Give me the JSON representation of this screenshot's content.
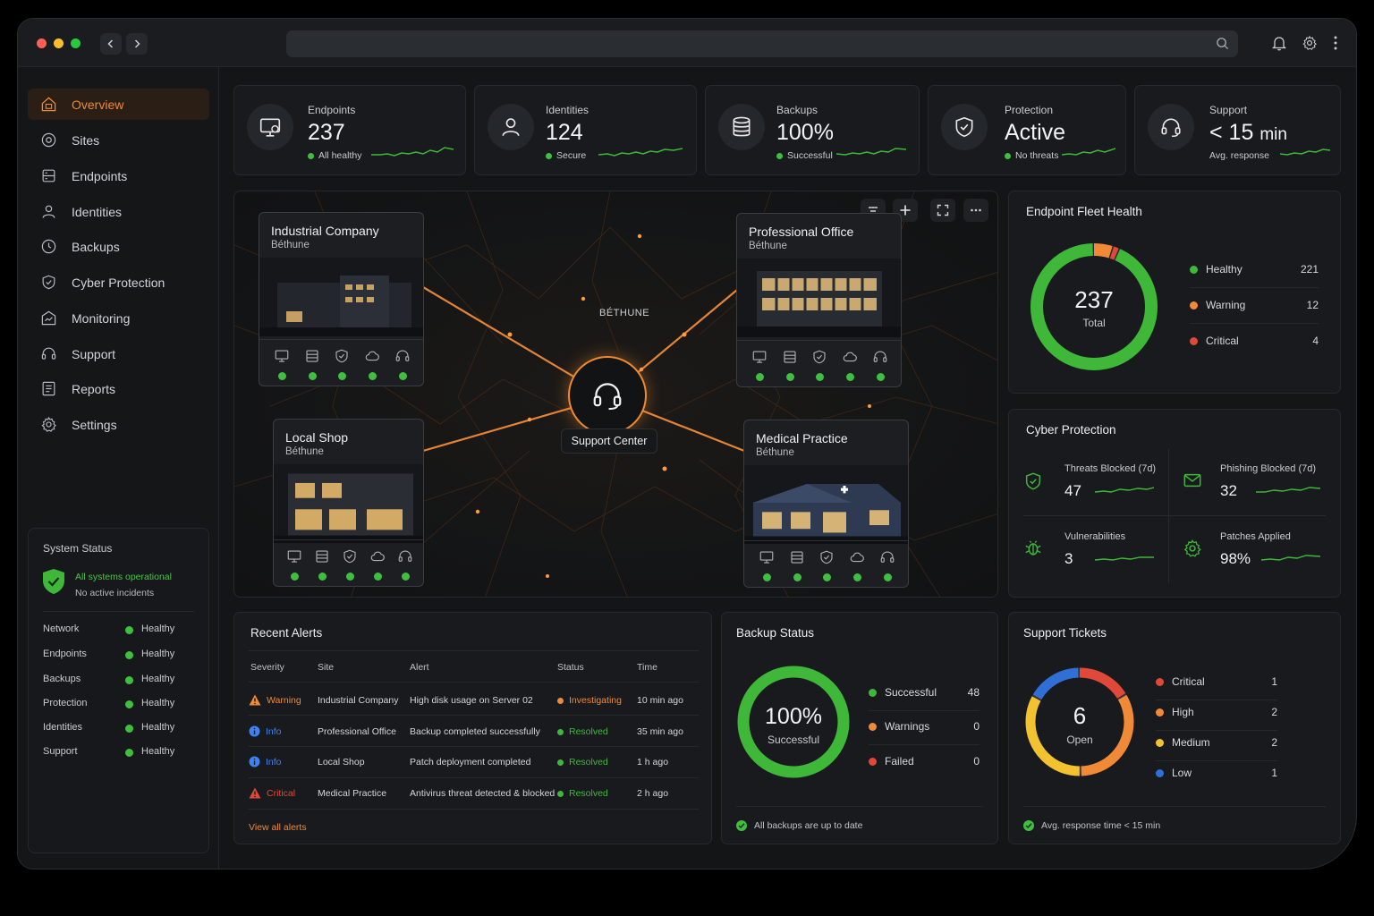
{
  "sidebar": {
    "items": [
      {
        "label": "Overview",
        "icon": "home-icon"
      },
      {
        "label": "Sites",
        "icon": "location-icon"
      },
      {
        "label": "Endpoints",
        "icon": "server-icon"
      },
      {
        "label": "Identities",
        "icon": "user-icon"
      },
      {
        "label": "Backups",
        "icon": "backup-icon"
      },
      {
        "label": "Cyber Protection",
        "icon": "shield-icon"
      },
      {
        "label": "Monitoring",
        "icon": "monitoring-icon"
      },
      {
        "label": "Support",
        "icon": "headset-icon"
      },
      {
        "label": "Reports",
        "icon": "report-icon"
      },
      {
        "label": "Settings",
        "icon": "gear-icon"
      }
    ],
    "system_status": {
      "title": "System Status",
      "headline": "All systems operational",
      "subline": "No active incidents",
      "rows": [
        {
          "name": "Network",
          "status": "Healthy"
        },
        {
          "name": "Endpoints",
          "status": "Healthy"
        },
        {
          "name": "Backups",
          "status": "Healthy"
        },
        {
          "name": "Protection",
          "status": "Healthy"
        },
        {
          "name": "Identities",
          "status": "Healthy"
        },
        {
          "name": "Support",
          "status": "Healthy"
        }
      ]
    }
  },
  "kpis": [
    {
      "label": "Endpoints",
      "value": "237",
      "sub": "All healthy",
      "icon": "monitor-icon"
    },
    {
      "label": "Identities",
      "value": "124",
      "sub": "Secure",
      "icon": "user-icon"
    },
    {
      "label": "Backups",
      "value": "100%",
      "sub": "Successful",
      "icon": "database-icon"
    },
    {
      "label": "Protection",
      "value": "Active",
      "sub": "No threats",
      "icon": "shield-check-icon"
    },
    {
      "label": "Support",
      "value_prefix": "< 15",
      "value_unit": "min",
      "sub": "Avg. response",
      "icon": "headset-icon"
    }
  ],
  "map": {
    "city": "BÉTHUNE",
    "hub_label": "Support Center",
    "sites": [
      {
        "name": "Industrial Company",
        "location": "Béthune"
      },
      {
        "name": "Professional Office",
        "location": "Béthune"
      },
      {
        "name": "Local Shop",
        "location": "Béthune"
      },
      {
        "name": "Medical Practice",
        "location": "Béthune"
      }
    ]
  },
  "fleet": {
    "title": "Endpoint Fleet Health",
    "total": "237",
    "total_label": "Total",
    "legend": [
      {
        "label": "Healthy",
        "value": 221,
        "color": "#3fb83a"
      },
      {
        "label": "Warning",
        "value": 12,
        "color": "#f08a36"
      },
      {
        "label": "Critical",
        "value": 4,
        "color": "#e0483a"
      }
    ]
  },
  "cyber": {
    "title": "Cyber Protection",
    "cells": [
      {
        "label": "Threats Blocked (7d)",
        "value": "47",
        "icon": "shield-check-icon"
      },
      {
        "label": "Phishing Blocked (7d)",
        "value": "32",
        "icon": "mail-icon"
      },
      {
        "label": "Vulnerabilities",
        "value": "3",
        "icon": "bug-icon"
      },
      {
        "label": "Patches Applied",
        "value": "98%",
        "icon": "gear-icon"
      }
    ]
  },
  "alerts": {
    "title": "Recent Alerts",
    "headers": [
      "Severity",
      "Site",
      "Alert",
      "Status",
      "Time"
    ],
    "rows": [
      {
        "severity": "Warning",
        "site": "Industrial Company",
        "alert": "High disk usage on Server 02",
        "status": "Investigating",
        "time": "10 min ago"
      },
      {
        "severity": "Info",
        "site": "Professional Office",
        "alert": "Backup completed successfully",
        "status": "Resolved",
        "time": "35 min ago"
      },
      {
        "severity": "Info",
        "site": "Local Shop",
        "alert": "Patch deployment completed",
        "status": "Resolved",
        "time": "1 h ago"
      },
      {
        "severity": "Critical",
        "site": "Medical Practice",
        "alert": "Antivirus threat detected & blocked",
        "status": "Resolved",
        "time": "2 h ago"
      }
    ],
    "view_all": "View all alerts"
  },
  "backup": {
    "title": "Backup Status",
    "center_value": "100%",
    "center_label": "Successful",
    "legend": [
      {
        "label": "Successful",
        "value": 48,
        "color": "#3fb83a"
      },
      {
        "label": "Warnings",
        "value": 0,
        "color": "#f08a36"
      },
      {
        "label": "Failed",
        "value": 0,
        "color": "#e0483a"
      }
    ],
    "footer": "All backups are up to date"
  },
  "tickets": {
    "title": "Support Tickets",
    "center_value": "6",
    "center_label": "Open",
    "legend": [
      {
        "label": "Critical",
        "value": 1,
        "color": "#e0483a"
      },
      {
        "label": "High",
        "value": 2,
        "color": "#f08a36"
      },
      {
        "label": "Medium",
        "value": 2,
        "color": "#f2c230"
      },
      {
        "label": "Low",
        "value": 1,
        "color": "#2f6fd6"
      }
    ],
    "footer": "Avg. response time < 15 min"
  },
  "colors": {
    "accent": "#f08a36",
    "ok": "#3fb83a",
    "info": "#3b82f6",
    "critical": "#e0483a"
  }
}
